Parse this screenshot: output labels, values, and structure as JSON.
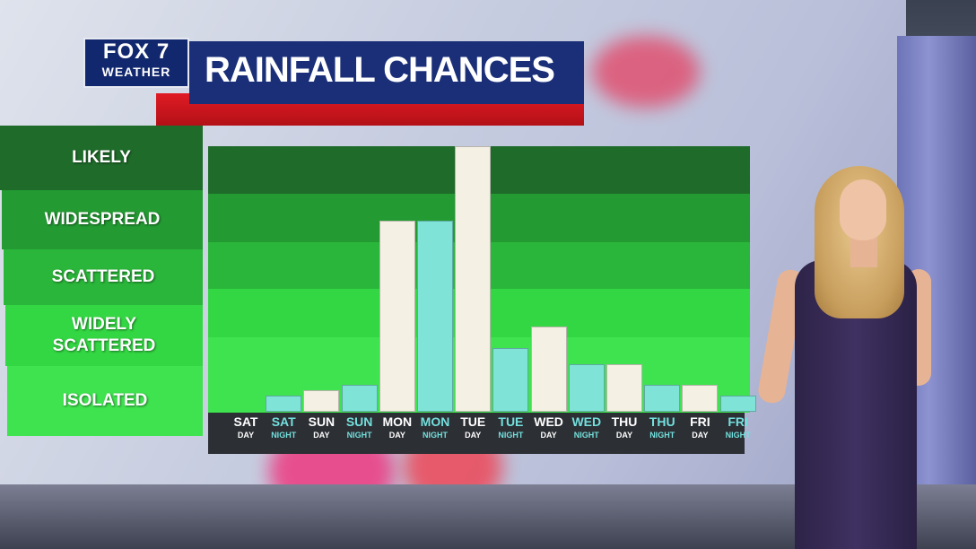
{
  "header": {
    "logo_line1": "FOX 7",
    "logo_line2": "WEATHER",
    "title": "RAINFALL CHANCES"
  },
  "categories": [
    "LIKELY",
    "WIDESPREAD",
    "SCATTERED",
    "WIDELY\nSCATTERED",
    "ISOLATED"
  ],
  "colors": {
    "day_bar": "#f4f1e4",
    "night_bar": "#7fe3d8",
    "day_label": "#ffffff",
    "night_label": "#74e0de",
    "band_likely": "#1f6b2a",
    "band_widespread": "#239a32",
    "band_scattered": "#2ab63a",
    "band_widely": "#33d743",
    "band_isolated": "#3fe24f"
  },
  "chart_data": {
    "type": "bar",
    "ylabels": [
      "ISOLATED",
      "WIDELY SCATTERED",
      "SCATTERED",
      "WIDESPREAD",
      "LIKELY"
    ],
    "ylim": [
      0,
      5
    ],
    "periods": [
      {
        "day": "SAT",
        "part": "DAY",
        "type": "day",
        "value": 0
      },
      {
        "day": "SAT",
        "part": "NIGHT",
        "type": "night",
        "value": 0.3
      },
      {
        "day": "SUN",
        "part": "DAY",
        "type": "day",
        "value": 0.4
      },
      {
        "day": "SUN",
        "part": "NIGHT",
        "type": "night",
        "value": 0.5
      },
      {
        "day": "MON",
        "part": "DAY",
        "type": "day",
        "value": 3.6
      },
      {
        "day": "MON",
        "part": "NIGHT",
        "type": "night",
        "value": 3.6
      },
      {
        "day": "TUE",
        "part": "DAY",
        "type": "day",
        "value": 5.0
      },
      {
        "day": "TUE",
        "part": "NIGHT",
        "type": "night",
        "value": 1.2
      },
      {
        "day": "WED",
        "part": "DAY",
        "type": "day",
        "value": 1.6
      },
      {
        "day": "WED",
        "part": "NIGHT",
        "type": "night",
        "value": 0.9
      },
      {
        "day": "THU",
        "part": "DAY",
        "type": "day",
        "value": 0.9
      },
      {
        "day": "THU",
        "part": "NIGHT",
        "type": "night",
        "value": 0.5
      },
      {
        "day": "FRI",
        "part": "DAY",
        "type": "day",
        "value": 0.5
      },
      {
        "day": "FRI",
        "part": "NIGHT",
        "type": "night",
        "value": 0.3
      }
    ]
  }
}
